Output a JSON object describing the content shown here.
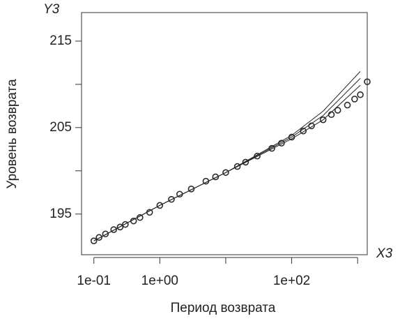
{
  "chart_data": {
    "type": "scatter",
    "y_label": "Уровень возврата",
    "x_label": "Период возврата",
    "y_corner_label": "Y3",
    "x_corner_label": "X3",
    "xlog": true,
    "xlim": [
      0.065,
      1400
    ],
    "ylim": [
      190.3,
      218.3
    ],
    "xticks": [
      {
        "value": 0.1,
        "label": "1e-01"
      },
      {
        "value": 1,
        "label": "1e+00"
      },
      {
        "value": 10,
        "label": null
      },
      {
        "value": 100,
        "label": "1e+02"
      },
      {
        "value": 1000,
        "label": null
      }
    ],
    "yticks": [
      195,
      {
        "value": 200,
        "label": null
      },
      205,
      {
        "value": 210,
        "label": null
      },
      215
    ],
    "point_color": "#2a2a2a",
    "x": [
      0.1,
      0.12,
      0.15,
      0.2,
      0.25,
      0.3,
      0.4,
      0.5,
      0.7,
      1,
      1.5,
      2,
      3,
      5,
      7,
      10,
      15,
      20,
      30,
      50,
      70,
      100,
      150,
      200,
      300,
      400,
      500,
      700,
      900,
      1100,
      1400
    ],
    "values": [
      191.9,
      192.3,
      192.7,
      193.2,
      193.5,
      193.8,
      194.2,
      194.6,
      195.2,
      196.0,
      196.7,
      197.3,
      197.9,
      198.8,
      199.3,
      199.8,
      200.5,
      201.0,
      201.7,
      202.6,
      203.2,
      203.9,
      204.6,
      205.2,
      205.9,
      206.5,
      207.0,
      207.6,
      208.3,
      208.8,
      210.3
    ],
    "lines": [
      {
        "color": "#222222",
        "x": [
          0.1,
          1,
          10,
          100,
          300,
          1100
        ],
        "values": [
          191.9,
          196.0,
          199.8,
          204.1,
          206.9,
          211.5
        ]
      },
      {
        "color": "#222222",
        "x": [
          0.1,
          1,
          10,
          100,
          300,
          1100
        ],
        "values": [
          191.9,
          196.0,
          199.8,
          203.9,
          206.4,
          210.7
        ]
      },
      {
        "color": "#222222",
        "x": [
          0.1,
          1,
          10,
          100,
          300,
          1100
        ],
        "values": [
          191.9,
          196.0,
          199.8,
          203.7,
          205.9,
          209.9
        ]
      }
    ]
  }
}
